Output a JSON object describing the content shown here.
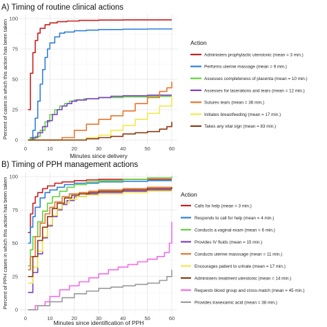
{
  "chart_data": [
    {
      "type": "line",
      "title": "A) Timing of routine clinical actions",
      "xlabel": "Minutes since delivery",
      "ylabel": "Percent of cases in which this action has been taken",
      "xlim": [
        0,
        60
      ],
      "ylim": [
        0,
        100
      ],
      "xticks": [
        0,
        10,
        20,
        30,
        40,
        50,
        60
      ],
      "yticks": [
        0,
        25,
        50,
        75,
        100
      ],
      "grid": true,
      "legend_title": "Action",
      "legend_position": "right",
      "series": [
        {
          "name": "Administers prophylactic uterotonic (mean = 3 min.)",
          "color": "#cc1f1f",
          "x": [
            1,
            2,
            3,
            4,
            5,
            6,
            8,
            10,
            13,
            17,
            22,
            30,
            40,
            50,
            60
          ],
          "y": [
            25,
            55,
            72,
            82,
            88,
            92,
            95,
            96.5,
            97.5,
            98,
            98.5,
            98.8,
            99,
            99,
            99
          ]
        },
        {
          "name": "Performs uterine massage (mean = 9 min.)",
          "color": "#2f80d8",
          "x": [
            1,
            2,
            3,
            4,
            5,
            6,
            7,
            8,
            9,
            10,
            12,
            14,
            16,
            20,
            25,
            30,
            40,
            50,
            60
          ],
          "y": [
            0,
            2,
            8,
            18,
            32,
            46,
            58,
            68,
            75,
            80,
            85,
            88,
            89,
            90,
            90.5,
            91,
            91.3,
            91.5,
            92
          ]
        },
        {
          "name": "Assesses completeness of placenta (mean = 10 min.)",
          "color": "#5fd43a",
          "x": [
            1,
            2,
            4,
            6,
            8,
            10,
            12,
            14,
            16,
            18,
            20,
            24,
            30,
            40,
            50,
            60
          ],
          "y": [
            0,
            1,
            3,
            8,
            15,
            21,
            25,
            28,
            30,
            32,
            33,
            34,
            35,
            35.5,
            36,
            36
          ]
        },
        {
          "name": "Assesses for lacerations and tears (mean = 12 min.)",
          "color": "#7a3fc8",
          "x": [
            1,
            3,
            5,
            7,
            9,
            11,
            13,
            15,
            17,
            19,
            21,
            25,
            30,
            35,
            40,
            50,
            60
          ],
          "y": [
            0,
            2,
            6,
            11,
            16,
            21,
            25,
            28,
            30,
            32,
            33,
            34,
            35,
            36,
            36.5,
            37,
            37
          ]
        },
        {
          "name": "Sutures tears (mean = 36 min.)",
          "color": "#e8762c",
          "x": [
            1,
            10,
            15,
            20,
            25,
            30,
            35,
            40,
            45,
            50,
            55,
            58,
            60
          ],
          "y": [
            0,
            0,
            2,
            8,
            13,
            17,
            20,
            24,
            30,
            35,
            40,
            43,
            48
          ]
        },
        {
          "name": "Initiates breastfeeding (mean = 17 min.)",
          "color": "#f2e84a",
          "x": [
            1,
            20,
            25,
            30,
            35,
            40,
            45,
            50,
            55,
            60
          ],
          "y": [
            0,
            0,
            2,
            4,
            8,
            12,
            17,
            22,
            28,
            36
          ]
        },
        {
          "name": "Takes any vital sign (mean = 83 min.)",
          "color": "#8b3a12",
          "x": [
            1,
            20,
            25,
            30,
            35,
            40,
            45,
            50,
            55,
            58,
            60
          ],
          "y": [
            0,
            0,
            1,
            2,
            3,
            5,
            6,
            7,
            9,
            11,
            15
          ]
        }
      ]
    },
    {
      "type": "line",
      "title": "B) Timing of PPH management actions",
      "xlabel": "Minutes since identification of PPH",
      "ylabel": "Percent of PPH cases in which this action has been taken",
      "xlim": [
        0,
        60
      ],
      "ylim": [
        0,
        100
      ],
      "xticks": [
        0,
        10,
        20,
        30,
        40,
        50,
        60
      ],
      "yticks": [
        0,
        25,
        50,
        75,
        100
      ],
      "grid": true,
      "legend_title": "Action",
      "legend_position": "right",
      "series": [
        {
          "name": "Calls for help (mean = 3 min.)",
          "color": "#cc1f1f",
          "x": [
            1,
            2,
            3,
            4,
            5,
            7,
            9,
            12,
            15,
            20,
            25,
            30,
            40,
            50,
            60
          ],
          "y": [
            58,
            72,
            80,
            85,
            88,
            91,
            93,
            95,
            96,
            97,
            97.5,
            98,
            98,
            98,
            98
          ]
        },
        {
          "name": "Responds to call for help (mean = 4 min.)",
          "color": "#2f80d8",
          "x": [
            1,
            2,
            3,
            4,
            6,
            8,
            10,
            13,
            16,
            20,
            30,
            40,
            50,
            60
          ],
          "y": [
            50,
            62,
            70,
            77,
            84,
            88,
            90,
            92,
            94,
            95,
            96,
            96.5,
            97,
            97
          ]
        },
        {
          "name": "Conducts a vaginal exam (mean = 6 min.)",
          "color": "#5fd43a",
          "x": [
            1,
            2,
            3,
            5,
            7,
            9,
            11,
            14,
            17,
            20,
            25,
            30,
            40,
            50,
            60
          ],
          "y": [
            33,
            45,
            55,
            66,
            74,
            80,
            85,
            89,
            92,
            94,
            96,
            97,
            98,
            99,
            100
          ]
        },
        {
          "name": "Provides IV fluids (mean = 15 min.)",
          "color": "#7a3fc8",
          "x": [
            1,
            3,
            5,
            7,
            9,
            11,
            13,
            15,
            17,
            20,
            25,
            30,
            40,
            50,
            60
          ],
          "y": [
            13,
            28,
            42,
            54,
            63,
            70,
            75,
            79,
            82,
            85,
            87,
            88,
            89,
            90,
            90
          ]
        },
        {
          "name": "Conducts uterine masssage (mean = 11 min.)",
          "color": "#e8762c",
          "x": [
            1,
            2,
            4,
            6,
            8,
            10,
            12,
            15,
            18,
            22,
            26,
            30,
            40,
            50,
            60
          ],
          "y": [
            30,
            40,
            55,
            65,
            72,
            77,
            81,
            85,
            87,
            88,
            89,
            90,
            91,
            92,
            92
          ]
        },
        {
          "name": "Encourages patient to urinate (mean = 17 min.)",
          "color": "#f2e84a",
          "x": [
            1,
            3,
            5,
            7,
            9,
            11,
            13,
            15,
            18,
            21,
            25,
            30,
            40,
            50,
            60
          ],
          "y": [
            20,
            32,
            44,
            55,
            64,
            71,
            76,
            80,
            83,
            85,
            86,
            87,
            88,
            89,
            89
          ]
        },
        {
          "name": "Administers treatment uterotonic (mean = 14 min.)",
          "color": "#8b3a12",
          "x": [
            1,
            3,
            5,
            7,
            9,
            11,
            13,
            16,
            19,
            22,
            26,
            30,
            40,
            50,
            60
          ],
          "y": [
            25,
            40,
            52,
            62,
            70,
            76,
            80,
            84,
            86,
            87,
            88,
            89,
            90,
            91,
            92
          ]
        },
        {
          "name": "Requests blood group and cross-match (mean = 45 min.)",
          "color": "#f26ce8",
          "x": [
            1,
            4,
            8,
            10,
            14,
            18,
            22,
            26,
            30,
            34,
            38,
            42,
            46,
            50,
            54,
            57,
            59,
            60
          ],
          "y": [
            0,
            3,
            6,
            10,
            15,
            18,
            21,
            24,
            27,
            30,
            32,
            34,
            36,
            38,
            40,
            43,
            50,
            66
          ]
        },
        {
          "name": "Provides tranexamic acid (mean = 38 min.)",
          "color": "#9a9a9a",
          "x": [
            1,
            5,
            10,
            15,
            20,
            25,
            30,
            35,
            40,
            45,
            50,
            55,
            58,
            60
          ],
          "y": [
            0,
            3,
            6,
            9,
            12,
            14,
            16,
            17,
            18,
            19,
            20,
            22,
            25,
            30
          ]
        }
      ]
    }
  ]
}
